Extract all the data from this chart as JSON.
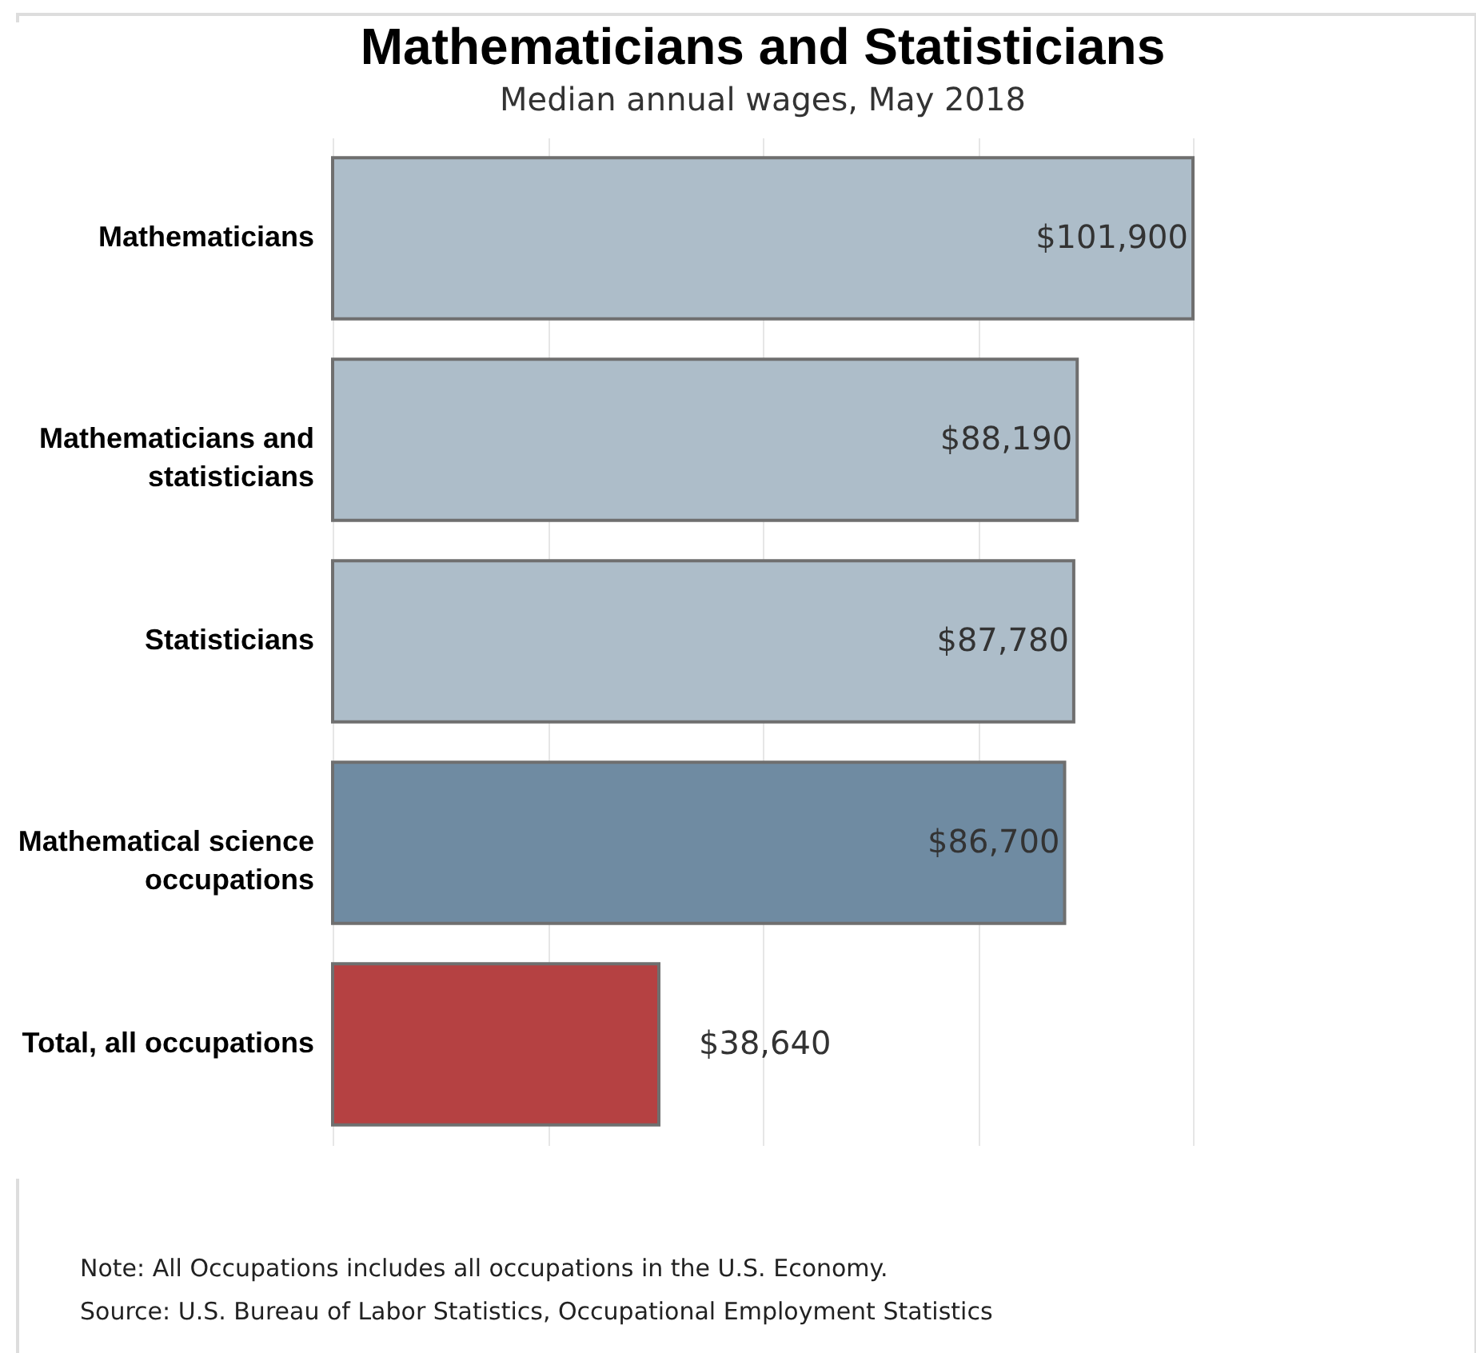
{
  "chart_data": {
    "type": "bar",
    "orientation": "horizontal",
    "title": "Mathematicians and Statisticians",
    "subtitle": "Median annual wages, May 2018",
    "categories": [
      "Mathematicians",
      "Mathematicians and statisticians",
      "Statisticians",
      "Mathematical science occupations",
      "Total, all occupations"
    ],
    "values": [
      101900,
      88190,
      87780,
      86700,
      38640
    ],
    "colors": [
      "#adbdc9",
      "#adbdc9",
      "#adbdc9",
      "#6f8ba2",
      "#b54142"
    ],
    "value_labels": [
      "$101,900",
      "$88,190",
      "$87,780",
      "$86,700",
      "$38,640"
    ],
    "xlim": [
      0,
      101900
    ],
    "xticks": [
      {
        "value": 0,
        "label": null
      },
      {
        "value": 25475,
        "label": null
      },
      {
        "value": 50950,
        "label": null
      },
      {
        "value": 76425,
        "label": null
      },
      {
        "value": 101900,
        "label": null
      }
    ],
    "grid": "x",
    "annotations": [
      "Note: All Occupations includes all occupations in the U.S. Economy.",
      "Source: U.S. Bureau of Labor Statistics, Occupational Employment Statistics"
    ]
  }
}
